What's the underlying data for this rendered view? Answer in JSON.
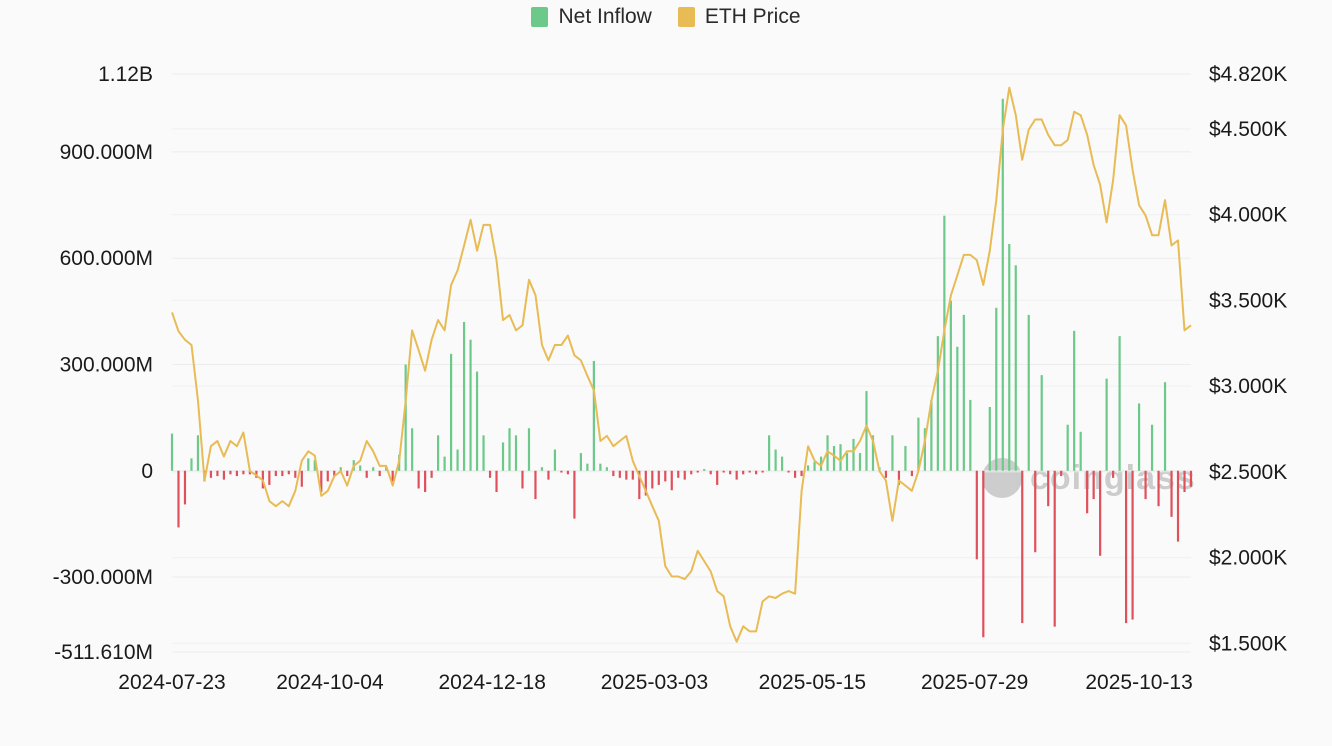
{
  "chart_data": {
    "type": "bar+line",
    "legend": {
      "position": "top",
      "items": [
        {
          "name": "Net Inflow",
          "color": "#6cc98a"
        },
        {
          "name": "ETH Price",
          "color": "#e8bb55"
        }
      ]
    },
    "colors": {
      "positive": "#6cc98a",
      "negative": "#e0505b",
      "price": "#e8bb55",
      "grid": "#ececec"
    },
    "x_axis": {
      "type": "date",
      "range": [
        "2024-07-23",
        "2025-11-06"
      ],
      "ticks": [
        "2024-07-23",
        "2024-10-04",
        "2024-12-18",
        "2025-03-03",
        "2025-05-15",
        "2025-07-29",
        "2025-10-13"
      ]
    },
    "y_left": {
      "series": "Net Inflow",
      "range": [
        -511610000,
        1120000000
      ],
      "ticks": [
        {
          "value": 1120000000,
          "label": "1.12B"
        },
        {
          "value": 900000000,
          "label": "900.000M"
        },
        {
          "value": 600000000,
          "label": "600.000M"
        },
        {
          "value": 300000000,
          "label": "300.000M"
        },
        {
          "value": 0,
          "label": "0"
        },
        {
          "value": -300000000,
          "label": "-300.000M"
        },
        {
          "value": -511610000,
          "label": "-511.610M"
        }
      ]
    },
    "y_right": {
      "series": "ETH Price",
      "range": [
        1450,
        4820
      ],
      "ticks": [
        {
          "value": 4820,
          "label": "$4.820K"
        },
        {
          "value": 4500,
          "label": "$4.500K"
        },
        {
          "value": 4000,
          "label": "$4.000K"
        },
        {
          "value": 3500,
          "label": "$3.500K"
        },
        {
          "value": 3000,
          "label": "$3.000K"
        },
        {
          "value": 2500,
          "label": "$2.500K"
        },
        {
          "value": 2000,
          "label": "$2.000K"
        },
        {
          "value": 1500,
          "label": "$1.500K"
        }
      ]
    },
    "grid": true,
    "watermark": "coinglass",
    "points_columns": [
      "date",
      "net_inflow_musd",
      "eth_price_usd"
    ],
    "points": [
      [
        "2024-07-23",
        105,
        3430
      ],
      [
        "2024-07-26",
        -160,
        3320
      ],
      [
        "2024-07-29",
        -95,
        3270
      ],
      [
        "2024-08-01",
        35,
        3240
      ],
      [
        "2024-08-04",
        100,
        2915
      ],
      [
        "2024-08-07",
        -30,
        2450
      ],
      [
        "2024-08-10",
        -20,
        2650
      ],
      [
        "2024-08-13",
        -15,
        2680
      ],
      [
        "2024-08-16",
        -25,
        2590
      ],
      [
        "2024-08-19",
        -10,
        2680
      ],
      [
        "2024-08-22",
        -15,
        2650
      ],
      [
        "2024-08-25",
        -10,
        2730
      ],
      [
        "2024-08-28",
        -10,
        2505
      ],
      [
        "2024-08-31",
        -20,
        2480
      ],
      [
        "2024-09-03",
        -50,
        2450
      ],
      [
        "2024-09-06",
        -40,
        2330
      ],
      [
        "2024-09-09",
        -15,
        2300
      ],
      [
        "2024-09-12",
        -15,
        2330
      ],
      [
        "2024-09-15",
        -10,
        2300
      ],
      [
        "2024-09-18",
        -20,
        2390
      ],
      [
        "2024-09-21",
        -45,
        2565
      ],
      [
        "2024-09-24",
        35,
        2620
      ],
      [
        "2024-09-27",
        30,
        2595
      ],
      [
        "2024-09-30",
        -60,
        2360
      ],
      [
        "2024-10-03",
        -30,
        2390
      ],
      [
        "2024-10-06",
        -15,
        2475
      ],
      [
        "2024-10-09",
        10,
        2505
      ],
      [
        "2024-10-12",
        -15,
        2420
      ],
      [
        "2024-10-15",
        30,
        2535
      ],
      [
        "2024-10-18",
        15,
        2565
      ],
      [
        "2024-10-21",
        -20,
        2680
      ],
      [
        "2024-10-24",
        10,
        2620
      ],
      [
        "2024-10-27",
        -15,
        2535
      ],
      [
        "2024-10-30",
        10,
        2535
      ],
      [
        "2024-11-02",
        -30,
        2420
      ],
      [
        "2024-11-05",
        45,
        2565
      ],
      [
        "2024-11-08",
        300,
        2915
      ],
      [
        "2024-11-11",
        120,
        3325
      ],
      [
        "2024-11-14",
        -50,
        3210
      ],
      [
        "2024-11-17",
        -60,
        3090
      ],
      [
        "2024-11-20",
        -20,
        3270
      ],
      [
        "2024-11-23",
        100,
        3385
      ],
      [
        "2024-11-26",
        40,
        3325
      ],
      [
        "2024-11-29",
        330,
        3590
      ],
      [
        "2024-12-02",
        60,
        3675
      ],
      [
        "2024-12-05",
        420,
        3820
      ],
      [
        "2024-12-08",
        370,
        3970
      ],
      [
        "2024-12-11",
        280,
        3790
      ],
      [
        "2024-12-14",
        100,
        3940
      ],
      [
        "2024-12-17",
        -20,
        3940
      ],
      [
        "2024-12-20",
        -60,
        3735
      ],
      [
        "2024-12-23",
        80,
        3385
      ],
      [
        "2024-12-26",
        120,
        3415
      ],
      [
        "2024-12-29",
        100,
        3325
      ],
      [
        "2025-01-01",
        -50,
        3355
      ],
      [
        "2025-01-04",
        120,
        3620
      ],
      [
        "2025-01-07",
        -80,
        3530
      ],
      [
        "2025-01-10",
        10,
        3240
      ],
      [
        "2025-01-13",
        -25,
        3150
      ],
      [
        "2025-01-16",
        60,
        3240
      ],
      [
        "2025-01-19",
        -5,
        3240
      ],
      [
        "2025-01-22",
        -10,
        3295
      ],
      [
        "2025-01-25",
        -135,
        3180
      ],
      [
        "2025-01-28",
        50,
        3150
      ],
      [
        "2025-01-31",
        20,
        3060
      ],
      [
        "2025-02-03",
        310,
        2975
      ],
      [
        "2025-02-06",
        20,
        2680
      ],
      [
        "2025-02-09",
        10,
        2710
      ],
      [
        "2025-02-12",
        -15,
        2650
      ],
      [
        "2025-02-15",
        -20,
        2680
      ],
      [
        "2025-02-18",
        -25,
        2710
      ],
      [
        "2025-02-21",
        -25,
        2565
      ],
      [
        "2025-02-24",
        -80,
        2475
      ],
      [
        "2025-02-27",
        -70,
        2390
      ],
      [
        "2025-03-02",
        -50,
        2300
      ],
      [
        "2025-03-05",
        -40,
        2215
      ],
      [
        "2025-03-08",
        -30,
        1950
      ],
      [
        "2025-03-11",
        -55,
        1890
      ],
      [
        "2025-03-14",
        -20,
        1890
      ],
      [
        "2025-03-17",
        -25,
        1875
      ],
      [
        "2025-03-20",
        -10,
        1920
      ],
      [
        "2025-03-23",
        -5,
        2040
      ],
      [
        "2025-03-26",
        5,
        1980
      ],
      [
        "2025-03-29",
        -10,
        1920
      ],
      [
        "2025-04-01",
        -40,
        1805
      ],
      [
        "2025-04-04",
        -5,
        1775
      ],
      [
        "2025-04-07",
        -10,
        1600
      ],
      [
        "2025-04-10",
        -25,
        1510
      ],
      [
        "2025-04-13",
        -10,
        1600
      ],
      [
        "2025-04-16",
        -5,
        1570
      ],
      [
        "2025-04-19",
        -10,
        1570
      ],
      [
        "2025-04-22",
        -5,
        1745
      ],
      [
        "2025-04-25",
        100,
        1775
      ],
      [
        "2025-04-28",
        60,
        1765
      ],
      [
        "2025-05-01",
        40,
        1790
      ],
      [
        "2025-05-04",
        -5,
        1805
      ],
      [
        "2025-05-07",
        -20,
        1790
      ],
      [
        "2025-05-10",
        -15,
        2390
      ],
      [
        "2025-05-13",
        15,
        2650
      ],
      [
        "2025-05-16",
        25,
        2565
      ],
      [
        "2025-05-19",
        40,
        2535
      ],
      [
        "2025-05-22",
        100,
        2620
      ],
      [
        "2025-05-25",
        70,
        2595
      ],
      [
        "2025-05-28",
        75,
        2565
      ],
      [
        "2025-05-31",
        50,
        2620
      ],
      [
        "2025-06-03",
        90,
        2620
      ],
      [
        "2025-06-06",
        50,
        2680
      ],
      [
        "2025-06-09",
        225,
        2770
      ],
      [
        "2025-06-12",
        100,
        2680
      ],
      [
        "2025-06-15",
        10,
        2505
      ],
      [
        "2025-06-18",
        -20,
        2450
      ],
      [
        "2025-06-21",
        100,
        2215
      ],
      [
        "2025-06-24",
        -40,
        2450
      ],
      [
        "2025-06-27",
        70,
        2420
      ],
      [
        "2025-06-30",
        -15,
        2390
      ],
      [
        "2025-07-03",
        150,
        2505
      ],
      [
        "2025-07-06",
        120,
        2680
      ],
      [
        "2025-07-09",
        200,
        2915
      ],
      [
        "2025-07-12",
        380,
        3090
      ],
      [
        "2025-07-15",
        720,
        3325
      ],
      [
        "2025-07-18",
        480,
        3530
      ],
      [
        "2025-07-21",
        350,
        3645
      ],
      [
        "2025-07-24",
        440,
        3765
      ],
      [
        "2025-07-27",
        200,
        3765
      ],
      [
        "2025-07-30",
        -250,
        3735
      ],
      [
        "2025-08-02",
        -470,
        3590
      ],
      [
        "2025-08-05",
        180,
        3790
      ],
      [
        "2025-08-08",
        460,
        4085
      ],
      [
        "2025-08-11",
        1050,
        4495
      ],
      [
        "2025-08-14",
        640,
        4740
      ],
      [
        "2025-08-17",
        580,
        4580
      ],
      [
        "2025-08-20",
        -430,
        4320
      ],
      [
        "2025-08-23",
        440,
        4495
      ],
      [
        "2025-08-26",
        -230,
        4555
      ],
      [
        "2025-08-29",
        270,
        4555
      ],
      [
        "2025-09-01",
        -100,
        4465
      ],
      [
        "2025-09-04",
        -440,
        4405
      ],
      [
        "2025-09-07",
        -15,
        4405
      ],
      [
        "2025-09-10",
        130,
        4435
      ],
      [
        "2025-09-13",
        395,
        4600
      ],
      [
        "2025-09-16",
        110,
        4580
      ],
      [
        "2025-09-19",
        -120,
        4465
      ],
      [
        "2025-09-22",
        -80,
        4290
      ],
      [
        "2025-09-25",
        -240,
        4175
      ],
      [
        "2025-09-28",
        260,
        3955
      ],
      [
        "2025-10-01",
        -20,
        4200
      ],
      [
        "2025-10-04",
        380,
        4580
      ],
      [
        "2025-10-07",
        -430,
        4520
      ],
      [
        "2025-10-10",
        -420,
        4260
      ],
      [
        "2025-10-13",
        190,
        4055
      ],
      [
        "2025-10-16",
        -80,
        3995
      ],
      [
        "2025-10-19",
        130,
        3880
      ],
      [
        "2025-10-22",
        -100,
        3880
      ],
      [
        "2025-10-25",
        250,
        4085
      ],
      [
        "2025-10-28",
        -130,
        3820
      ],
      [
        "2025-10-31",
        -200,
        3850
      ],
      [
        "2025-11-03",
        -60,
        3325
      ],
      [
        "2025-11-06",
        -45,
        3355
      ]
    ]
  }
}
